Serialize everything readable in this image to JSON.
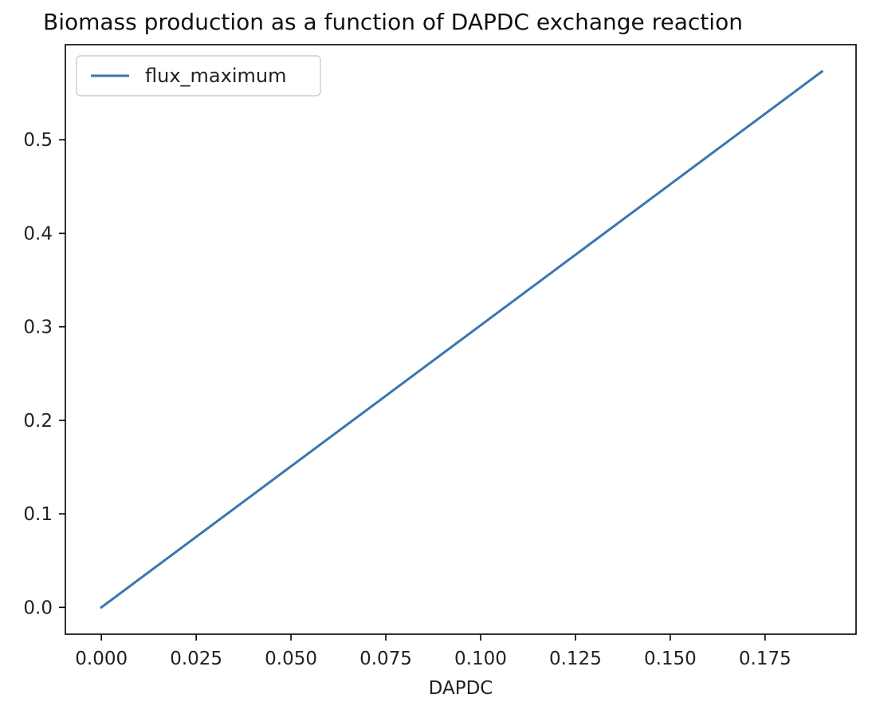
{
  "chart_data": {
    "type": "line",
    "title": "Biomass production as a function of DAPDC exchange reaction",
    "xlabel": "DAPDC",
    "ylabel": "",
    "xlim": [
      -0.0095,
      0.199
    ],
    "ylim": [
      -0.0287,
      0.6017
    ],
    "xticks": [
      0.0,
      0.025,
      0.05,
      0.075,
      0.1,
      0.125,
      0.15,
      0.175
    ],
    "xtick_labels": [
      "0.000",
      "0.025",
      "0.050",
      "0.075",
      "0.100",
      "0.125",
      "0.150",
      "0.175"
    ],
    "yticks": [
      0.0,
      0.1,
      0.2,
      0.3,
      0.4,
      0.5
    ],
    "ytick_labels": [
      "0.0",
      "0.1",
      "0.2",
      "0.3",
      "0.4",
      "0.5"
    ],
    "grid": false,
    "legend_position": "upper-left",
    "series": [
      {
        "name": "flux_maximum",
        "color": "#3a76b0",
        "x": [
          0.0,
          0.19
        ],
        "y": [
          0.0,
          0.573
        ]
      }
    ]
  }
}
